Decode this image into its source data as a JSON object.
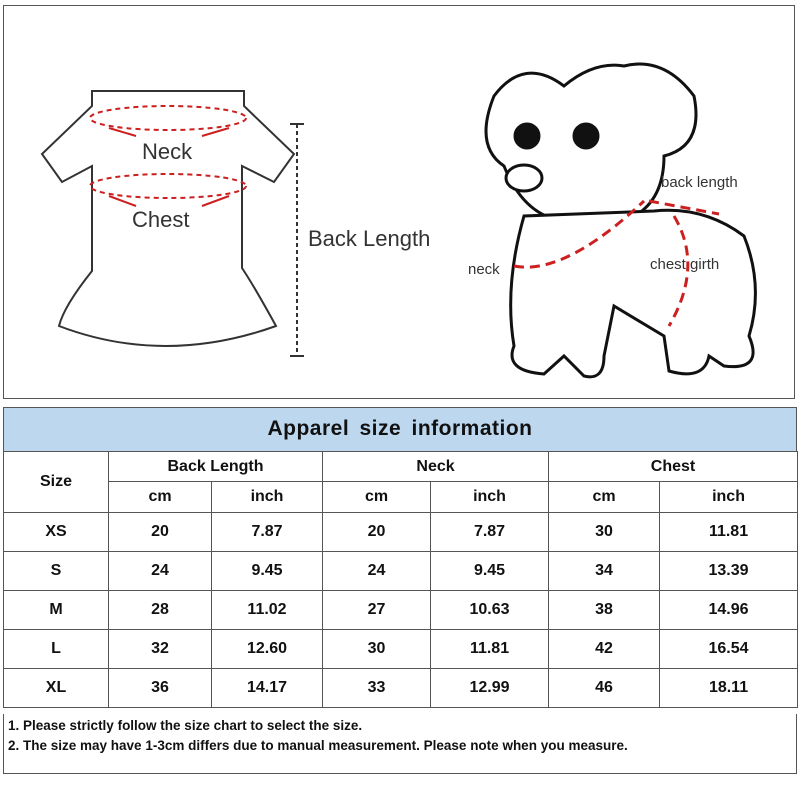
{
  "illustration": {
    "shirt_labels": {
      "neck": "Neck",
      "chest": "Chest",
      "back_length": "Back Length"
    },
    "dog_labels": {
      "back_length": "back length",
      "neck": "neck",
      "chest_girth": "chest girth"
    },
    "accent_color": "#cc1f1f"
  },
  "table": {
    "title": "Apparel size information",
    "size_header": "Size",
    "groups": [
      "Back Length",
      "Neck",
      "Chest"
    ],
    "units": [
      "cm",
      "inch",
      "cm",
      "inch",
      "cm",
      "inch"
    ],
    "rows": [
      [
        "XS",
        "20",
        "7.87",
        "20",
        "7.87",
        "30",
        "11.81"
      ],
      [
        "S",
        "24",
        "9.45",
        "24",
        "9.45",
        "34",
        "13.39"
      ],
      [
        "M",
        "28",
        "11.02",
        "27",
        "10.63",
        "38",
        "14.96"
      ],
      [
        "L",
        "32",
        "12.60",
        "30",
        "11.81",
        "42",
        "16.54"
      ],
      [
        "XL",
        "36",
        "14.17",
        "33",
        "12.99",
        "46",
        "18.11"
      ]
    ],
    "header_color": "#bdd7ee"
  },
  "notes": [
    "1. Please strictly follow the size chart  to select the size.",
    "2. The size may have 1-3cm differs due to manual measurement. Please note when you measure."
  ]
}
